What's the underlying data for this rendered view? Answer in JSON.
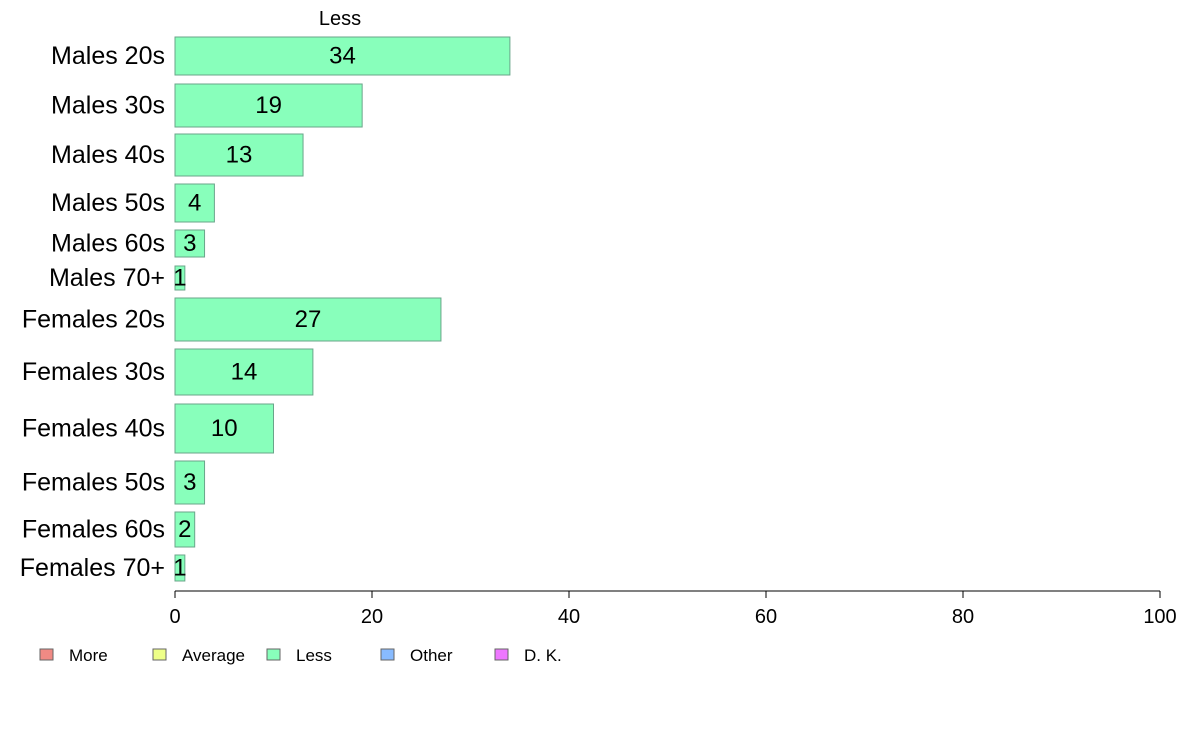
{
  "chart_data": {
    "type": "bar",
    "orientation": "horizontal",
    "title": "Less",
    "categories": [
      "Males 20s",
      "Males 30s",
      "Males 40s",
      "Males 50s",
      "Males 60s",
      "Males 70+",
      "Females 20s",
      "Females 30s",
      "Females 40s",
      "Females 50s",
      "Females 60s",
      "Females 70+"
    ],
    "series": [
      {
        "name": "Less",
        "values": [
          34,
          19,
          13,
          4,
          3,
          1,
          27,
          14,
          10,
          3,
          2,
          1
        ],
        "color": "#88ffbb"
      }
    ],
    "xlim": [
      0,
      100
    ],
    "xticks": [
      0,
      20,
      40,
      60,
      80,
      100
    ],
    "grid": false,
    "legend_position": "bottom-left",
    "legend": [
      {
        "label": "More",
        "color": "#f08a84"
      },
      {
        "label": "Average",
        "color": "#eeff88"
      },
      {
        "label": "Less",
        "color": "#88ffbb"
      },
      {
        "label": "Other",
        "color": "#88bbff"
      },
      {
        "label": "D. K.",
        "color": "#ee77ff"
      }
    ]
  }
}
